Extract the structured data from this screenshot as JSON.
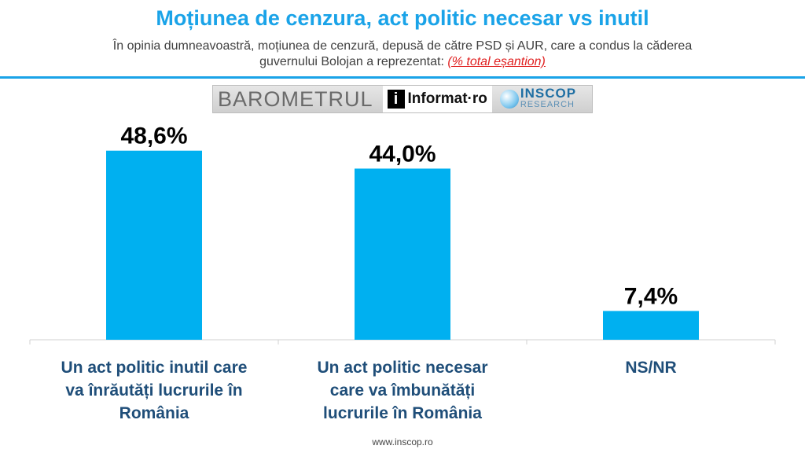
{
  "header": {
    "title": "Moțiunea de cenzura, act politic necesar vs inutil",
    "subtitle_line1": "În opinia dumneavoastră, moțiunea de cenzură, depusă de către PSD și AUR, care a condus la căderea",
    "subtitle_line2": "guvernului Bolojan a reprezentat:",
    "subtitle_note": "(% total eșantion)"
  },
  "logos": {
    "barometrul": "BAROMETRUL",
    "informat_icon": "i",
    "informat": "Informat·ro",
    "inscop": "INSCOP",
    "inscop_sub": "RESEARCH"
  },
  "colors": {
    "title": "#1aa3e8",
    "bar": "#00b0f0",
    "category_label": "#1f4e79"
  },
  "chart_data": {
    "type": "bar",
    "categories": [
      "Un act politic inutil care va înrăutăți lucrurile în România",
      "Un act politic necesar care va îmbunătăți lucrurile în România",
      "NS/NR"
    ],
    "category_lines": [
      [
        "Un act politic inutil care",
        "va înrăutăți lucrurile în",
        "România"
      ],
      [
        "Un act politic necesar",
        "care va îmbunătăți",
        "lucrurile în România"
      ],
      [
        "NS/NR"
      ]
    ],
    "values": [
      48.6,
      44.0,
      7.4
    ],
    "data_labels": [
      "48,6%",
      "44,0%",
      "7,4%"
    ],
    "ylim": [
      0,
      55
    ],
    "grid": false,
    "legend": "none"
  },
  "footer": {
    "url": "www.inscop.ro"
  }
}
